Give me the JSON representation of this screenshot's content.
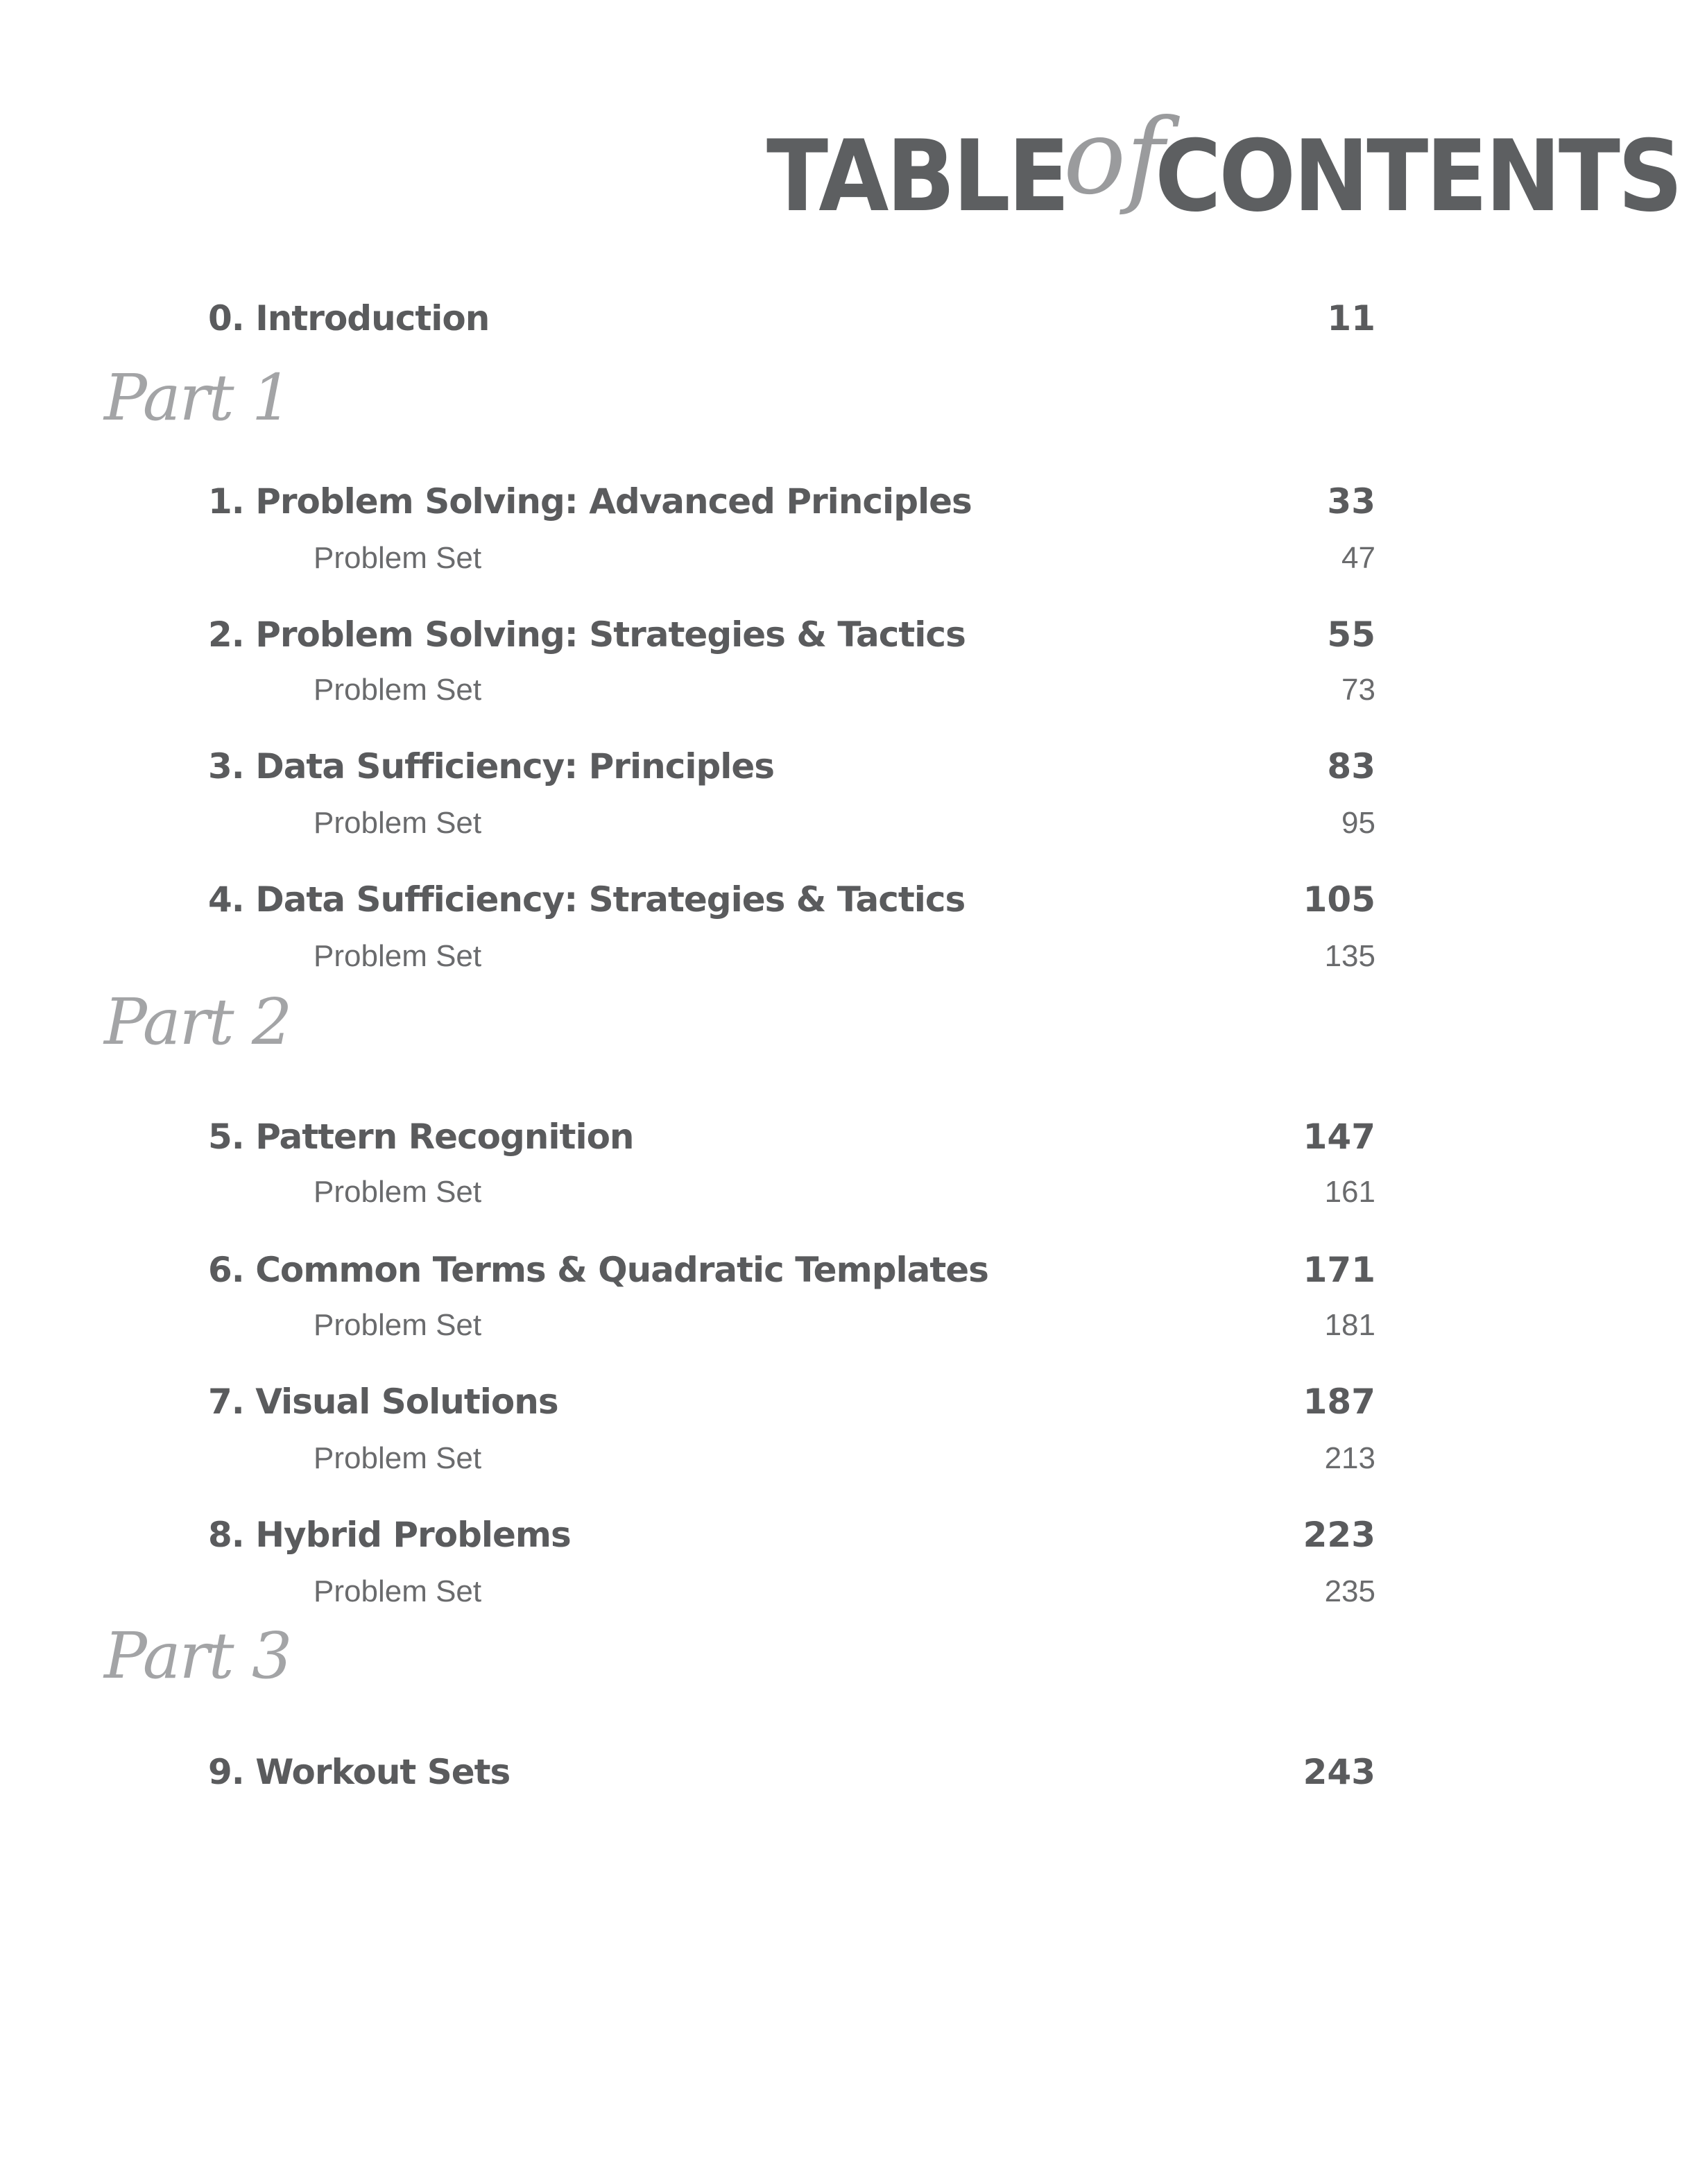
{
  "title": {
    "part1": "TABLE",
    "part2": "of",
    "part3": "CONTENTS"
  },
  "entries": [
    {
      "type": "chapter",
      "label": "0. Introduction",
      "page": "11"
    },
    {
      "type": "part",
      "label": "Part 1"
    },
    {
      "type": "chapter",
      "label": "1. Problem Solving: Advanced Principles",
      "page": "33"
    },
    {
      "type": "sub",
      "label": "Problem Set",
      "page": "47"
    },
    {
      "type": "chapter",
      "label": "2. Problem Solving: Strategies & Tactics",
      "page": "55"
    },
    {
      "type": "sub",
      "label": "Problem Set",
      "page": "73"
    },
    {
      "type": "chapter",
      "label": "3. Data Sufficiency: Principles",
      "page": "83"
    },
    {
      "type": "sub",
      "label": "Problem Set",
      "page": "95"
    },
    {
      "type": "chapter",
      "label": "4. Data Sufficiency: Strategies & Tactics",
      "page": "105"
    },
    {
      "type": "sub",
      "label": "Problem Set",
      "page": "135"
    },
    {
      "type": "part",
      "label": "Part 2"
    },
    {
      "type": "chapter",
      "label": "5. Pattern Recognition",
      "page": "147"
    },
    {
      "type": "sub",
      "label": "Problem Set",
      "page": "161"
    },
    {
      "type": "chapter",
      "label": "6. Common Terms & Quadratic Templates",
      "page": "171"
    },
    {
      "type": "sub",
      "label": "Problem Set",
      "page": "181"
    },
    {
      "type": "chapter",
      "label": "7. Visual Solutions",
      "page": "187"
    },
    {
      "type": "sub",
      "label": "Problem Set",
      "page": "213"
    },
    {
      "type": "chapter",
      "label": "8. Hybrid Problems",
      "page": "223"
    },
    {
      "type": "sub",
      "label": "Problem Set",
      "page": "235"
    },
    {
      "type": "part",
      "label": "Part 3"
    },
    {
      "type": "chapter",
      "label": "9. Workout Sets",
      "page": "243"
    }
  ]
}
